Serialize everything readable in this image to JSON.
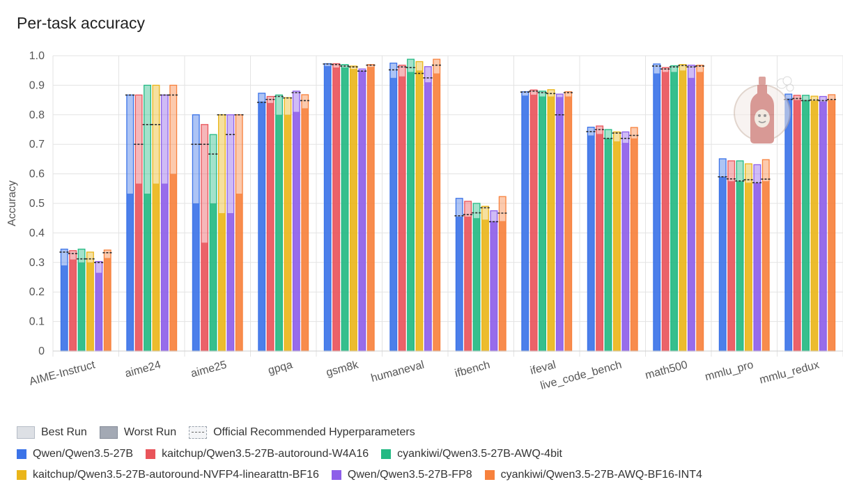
{
  "chart_data": {
    "type": "bar",
    "title": "Per-task accuracy",
    "xlabel": "",
    "ylabel": "Accuracy",
    "ylim": [
      0,
      1.0
    ],
    "yticks": [
      "0",
      "0.1",
      "0.2",
      "0.3",
      "0.4",
      "0.5",
      "0.6",
      "0.7",
      "0.8",
      "0.9",
      "1.0"
    ],
    "grid": true,
    "legend_position": "bottom",
    "legend_run_items": [
      "Best Run",
      "Worst Run",
      "Official Recommended Hyperparameters"
    ],
    "categories": [
      "AIME-Instruct",
      "aime24",
      "aime25",
      "gpqa",
      "gsm8k",
      "humaneval",
      "ifbench",
      "ifeval",
      "live_code_bench",
      "math500",
      "mmlu_pro",
      "mmlu_redux"
    ],
    "series": [
      {
        "name": "Qwen/Qwen3.5-27B",
        "color": "#3b73e8",
        "best": [
          0.345,
          0.867,
          0.8,
          0.873,
          0.973,
          0.975,
          0.517,
          0.878,
          0.758,
          0.972,
          0.651,
          0.87
        ],
        "worst": [
          0.29,
          0.533,
          0.5,
          0.845,
          0.965,
          0.925,
          0.455,
          0.865,
          0.73,
          0.94,
          0.59,
          0.855
        ],
        "official": [
          0.335,
          0.867,
          0.7,
          0.842,
          0.972,
          0.952,
          0.458,
          0.877,
          0.743,
          0.965,
          0.59,
          0.852
        ]
      },
      {
        "name": "kaitchup/Qwen3.5-27B-autoround-W4A16",
        "color": "#e9545a",
        "best": [
          0.34,
          0.867,
          0.767,
          0.862,
          0.973,
          0.968,
          0.507,
          0.884,
          0.762,
          0.96,
          0.644,
          0.866
        ],
        "worst": [
          0.31,
          0.567,
          0.367,
          0.84,
          0.96,
          0.93,
          0.455,
          0.868,
          0.735,
          0.945,
          0.575,
          0.85
        ],
        "official": [
          0.33,
          0.7,
          0.7,
          0.852,
          0.97,
          0.962,
          0.462,
          0.88,
          0.75,
          0.955,
          0.583,
          0.855
        ]
      },
      {
        "name": "cyankiwi/Qwen3.5-27B-AWQ-4bit",
        "color": "#23b983",
        "best": [
          0.345,
          0.9,
          0.733,
          0.867,
          0.97,
          0.988,
          0.5,
          0.88,
          0.75,
          0.966,
          0.644,
          0.866
        ],
        "worst": [
          0.3,
          0.533,
          0.5,
          0.8,
          0.96,
          0.945,
          0.45,
          0.862,
          0.72,
          0.945,
          0.575,
          0.85
        ],
        "official": [
          0.312,
          0.767,
          0.667,
          0.862,
          0.965,
          0.96,
          0.468,
          0.875,
          0.72,
          0.962,
          0.576,
          0.848
        ]
      },
      {
        "name": "kaitchup/Qwen3.5-27B-autoround-NVFP4-linearattn-BF16",
        "color": "#eab51a",
        "best": [
          0.335,
          0.9,
          0.8,
          0.858,
          0.965,
          0.98,
          0.49,
          0.885,
          0.742,
          0.97,
          0.634,
          0.863
        ],
        "worst": [
          0.3,
          0.567,
          0.467,
          0.8,
          0.955,
          0.95,
          0.445,
          0.862,
          0.71,
          0.95,
          0.57,
          0.848
        ],
        "official": [
          0.312,
          0.767,
          0.8,
          0.857,
          0.962,
          0.94,
          0.485,
          0.872,
          0.738,
          0.967,
          0.58,
          0.85
        ]
      },
      {
        "name": "Qwen/Qwen3.5-27B-FP8",
        "color": "#8d5ee9",
        "best": [
          0.303,
          0.867,
          0.8,
          0.88,
          0.955,
          0.963,
          0.475,
          0.87,
          0.742,
          0.968,
          0.631,
          0.862
        ],
        "worst": [
          0.265,
          0.567,
          0.467,
          0.81,
          0.95,
          0.91,
          0.44,
          0.86,
          0.705,
          0.925,
          0.57,
          0.845
        ],
        "official": [
          0.3,
          0.867,
          0.733,
          0.875,
          0.948,
          0.925,
          0.438,
          0.8,
          0.72,
          0.962,
          0.57,
          0.848
        ]
      },
      {
        "name": "cyankiwi/Qwen3.5-27B-AWQ-BF16-INT4",
        "color": "#f7813c",
        "best": [
          0.342,
          0.9,
          0.8,
          0.868,
          0.97,
          0.988,
          0.523,
          0.878,
          0.757,
          0.968,
          0.648,
          0.868
        ],
        "worst": [
          0.315,
          0.6,
          0.533,
          0.822,
          0.962,
          0.94,
          0.44,
          0.862,
          0.72,
          0.945,
          0.575,
          0.85
        ],
        "official": [
          0.333,
          0.867,
          0.8,
          0.848,
          0.968,
          0.968,
          0.467,
          0.875,
          0.73,
          0.965,
          0.582,
          0.852
        ]
      }
    ]
  }
}
